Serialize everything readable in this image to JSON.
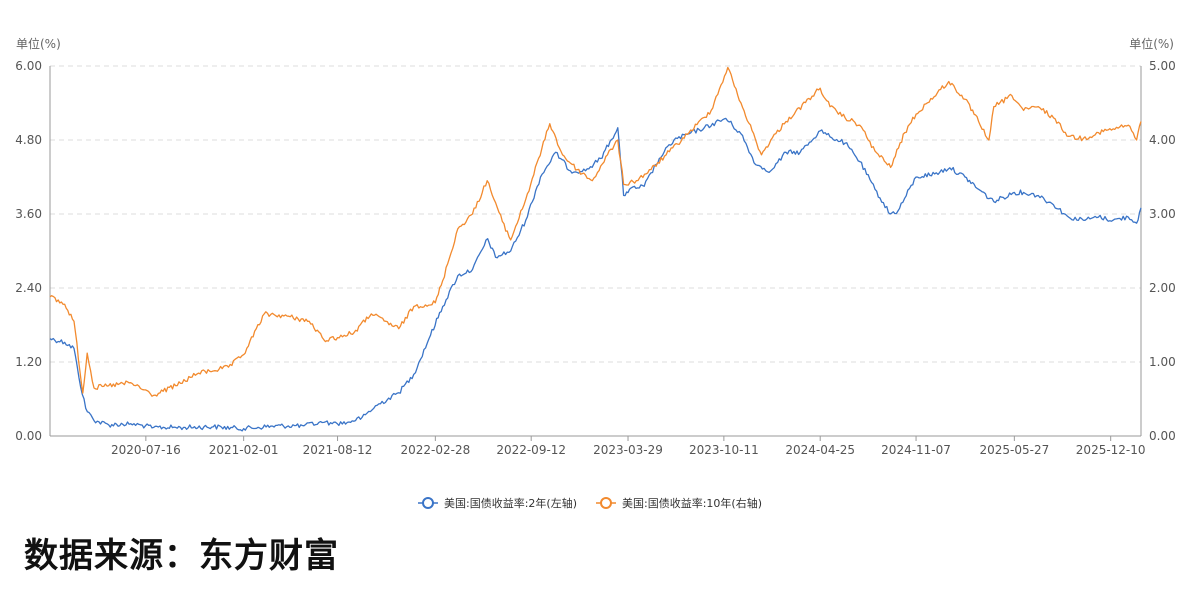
{
  "chart_data": {
    "type": "line",
    "left_axis_unit": "单位(%)",
    "right_axis_unit": "单位(%)",
    "left_axis": {
      "ylim": [
        0,
        6
      ],
      "ticks": [
        "0.00",
        "1.20",
        "2.40",
        "3.60",
        "4.80",
        "6.00"
      ]
    },
    "right_axis": {
      "ylim": [
        0,
        5
      ],
      "ticks": [
        "0.00",
        "1.00",
        "2.00",
        "3.00",
        "4.00",
        "5.00"
      ]
    },
    "x_range": [
      "2020-01-02",
      "2026-02-10"
    ],
    "x_tick_labels": [
      "2020-07-16",
      "2021-02-01",
      "2021-08-12",
      "2022-02-28",
      "2022-09-12",
      "2023-03-29",
      "2023-10-11",
      "2024-04-25",
      "2024-11-07",
      "2025-05-27",
      "2025-12-10"
    ],
    "grid": "horizontal-dashed",
    "legend_position": "bottom-center",
    "series": [
      {
        "name": "美国:国债收益率:2年(左轴)",
        "axis": "left",
        "color": "#3a74c7",
        "points": [
          [
            "2020-01-02",
            1.58
          ],
          [
            "2020-02-01",
            1.52
          ],
          [
            "2020-02-20",
            1.42
          ],
          [
            "2020-03-01",
            0.95
          ],
          [
            "2020-03-15",
            0.45
          ],
          [
            "2020-04-01",
            0.25
          ],
          [
            "2020-05-01",
            0.18
          ],
          [
            "2020-06-15",
            0.2
          ],
          [
            "2020-08-01",
            0.14
          ],
          [
            "2020-10-01",
            0.14
          ],
          [
            "2020-12-01",
            0.15
          ],
          [
            "2021-02-01",
            0.12
          ],
          [
            "2021-04-01",
            0.16
          ],
          [
            "2021-06-01",
            0.17
          ],
          [
            "2021-07-15",
            0.22
          ],
          [
            "2021-08-01",
            0.2
          ],
          [
            "2021-09-01",
            0.22
          ],
          [
            "2021-10-01",
            0.3
          ],
          [
            "2021-11-01",
            0.5
          ],
          [
            "2021-12-15",
            0.7
          ],
          [
            "2022-01-15",
            1.0
          ],
          [
            "2022-02-15",
            1.58
          ],
          [
            "2022-03-15",
            2.1
          ],
          [
            "2022-04-15",
            2.6
          ],
          [
            "2022-05-15",
            2.7
          ],
          [
            "2022-06-15",
            3.2
          ],
          [
            "2022-07-01",
            2.9
          ],
          [
            "2022-08-01",
            3.0
          ],
          [
            "2022-09-01",
            3.5
          ],
          [
            "2022-10-01",
            4.2
          ],
          [
            "2022-11-01",
            4.6
          ],
          [
            "2022-12-01",
            4.3
          ],
          [
            "2023-01-01",
            4.3
          ],
          [
            "2023-02-01",
            4.5
          ],
          [
            "2023-03-08",
            5.0
          ],
          [
            "2023-03-20",
            3.9
          ],
          [
            "2023-04-01",
            4.0
          ],
          [
            "2023-05-01",
            4.05
          ],
          [
            "2023-06-01",
            4.5
          ],
          [
            "2023-07-01",
            4.8
          ],
          [
            "2023-08-01",
            4.9
          ],
          [
            "2023-09-01",
            5.0
          ],
          [
            "2023-10-15",
            5.15
          ],
          [
            "2023-11-15",
            4.9
          ],
          [
            "2023-12-15",
            4.4
          ],
          [
            "2024-01-15",
            4.3
          ],
          [
            "2024-02-15",
            4.6
          ],
          [
            "2024-03-15",
            4.6
          ],
          [
            "2024-04-25",
            4.95
          ],
          [
            "2024-05-15",
            4.85
          ],
          [
            "2024-06-15",
            4.75
          ],
          [
            "2024-07-15",
            4.45
          ],
          [
            "2024-08-15",
            4.0
          ],
          [
            "2024-09-15",
            3.6
          ],
          [
            "2024-10-01",
            3.65
          ],
          [
            "2024-11-07",
            4.2
          ],
          [
            "2024-12-15",
            4.25
          ],
          [
            "2025-01-15",
            4.35
          ],
          [
            "2025-02-15",
            4.2
          ],
          [
            "2025-03-15",
            4.0
          ],
          [
            "2025-04-15",
            3.8
          ],
          [
            "2025-05-27",
            3.95
          ],
          [
            "2025-06-15",
            3.95
          ],
          [
            "2025-07-15",
            3.9
          ],
          [
            "2025-08-15",
            3.75
          ],
          [
            "2025-09-15",
            3.55
          ],
          [
            "2025-10-15",
            3.5
          ],
          [
            "2025-11-15",
            3.55
          ],
          [
            "2025-12-15",
            3.5
          ],
          [
            "2026-01-15",
            3.55
          ],
          [
            "2026-02-01",
            3.45
          ],
          [
            "2026-02-10",
            3.7
          ]
        ]
      },
      {
        "name": "美国:国债收益率:10年(右轴)",
        "axis": "right",
        "color": "#f28a2e",
        "points": [
          [
            "2020-01-02",
            1.88
          ],
          [
            "2020-02-01",
            1.78
          ],
          [
            "2020-02-20",
            1.55
          ],
          [
            "2020-03-09",
            0.58
          ],
          [
            "2020-03-18",
            1.12
          ],
          [
            "2020-04-01",
            0.65
          ],
          [
            "2020-05-01",
            0.68
          ],
          [
            "2020-06-15",
            0.72
          ],
          [
            "2020-08-01",
            0.55
          ],
          [
            "2020-09-15",
            0.68
          ],
          [
            "2020-11-01",
            0.85
          ],
          [
            "2021-01-01",
            0.93
          ],
          [
            "2021-02-01",
            1.1
          ],
          [
            "2021-03-15",
            1.65
          ],
          [
            "2021-05-01",
            1.62
          ],
          [
            "2021-06-15",
            1.55
          ],
          [
            "2021-07-15",
            1.3
          ],
          [
            "2021-08-12",
            1.33
          ],
          [
            "2021-09-15",
            1.4
          ],
          [
            "2021-10-20",
            1.65
          ],
          [
            "2021-12-15",
            1.45
          ],
          [
            "2022-01-15",
            1.75
          ],
          [
            "2022-02-28",
            1.8
          ],
          [
            "2022-03-15",
            2.1
          ],
          [
            "2022-04-15",
            2.8
          ],
          [
            "2022-05-15",
            3.0
          ],
          [
            "2022-06-14",
            3.45
          ],
          [
            "2022-07-15",
            2.9
          ],
          [
            "2022-08-01",
            2.65
          ],
          [
            "2022-09-01",
            3.2
          ],
          [
            "2022-10-20",
            4.22
          ],
          [
            "2022-11-15",
            3.8
          ],
          [
            "2022-12-15",
            3.6
          ],
          [
            "2023-01-15",
            3.45
          ],
          [
            "2023-02-15",
            3.8
          ],
          [
            "2023-03-08",
            4.0
          ],
          [
            "2023-03-20",
            3.4
          ],
          [
            "2023-04-15",
            3.45
          ],
          [
            "2023-05-15",
            3.6
          ],
          [
            "2023-06-15",
            3.8
          ],
          [
            "2023-08-01",
            4.1
          ],
          [
            "2023-09-15",
            4.4
          ],
          [
            "2023-10-19",
            4.98
          ],
          [
            "2023-11-15",
            4.5
          ],
          [
            "2023-12-27",
            3.8
          ],
          [
            "2024-01-15",
            4.0
          ],
          [
            "2024-02-15",
            4.25
          ],
          [
            "2024-04-25",
            4.7
          ],
          [
            "2024-05-15",
            4.45
          ],
          [
            "2024-06-15",
            4.3
          ],
          [
            "2024-07-15",
            4.2
          ],
          [
            "2024-08-15",
            3.85
          ],
          [
            "2024-09-16",
            3.63
          ],
          [
            "2024-10-15",
            4.1
          ],
          [
            "2024-11-07",
            4.35
          ],
          [
            "2025-01-13",
            4.79
          ],
          [
            "2025-02-15",
            4.55
          ],
          [
            "2025-03-15",
            4.25
          ],
          [
            "2025-04-05",
            4.0
          ],
          [
            "2025-04-15",
            4.45
          ],
          [
            "2025-05-22",
            4.6
          ],
          [
            "2025-06-15",
            4.4
          ],
          [
            "2025-07-15",
            4.45
          ],
          [
            "2025-08-15",
            4.3
          ],
          [
            "2025-09-15",
            4.05
          ],
          [
            "2025-10-15",
            4.02
          ],
          [
            "2025-11-15",
            4.1
          ],
          [
            "2025-12-15",
            4.15
          ],
          [
            "2026-01-15",
            4.2
          ],
          [
            "2026-02-01",
            4.0
          ],
          [
            "2026-02-10",
            4.25
          ]
        ]
      }
    ]
  },
  "source_label": "数据来源：东方财富"
}
